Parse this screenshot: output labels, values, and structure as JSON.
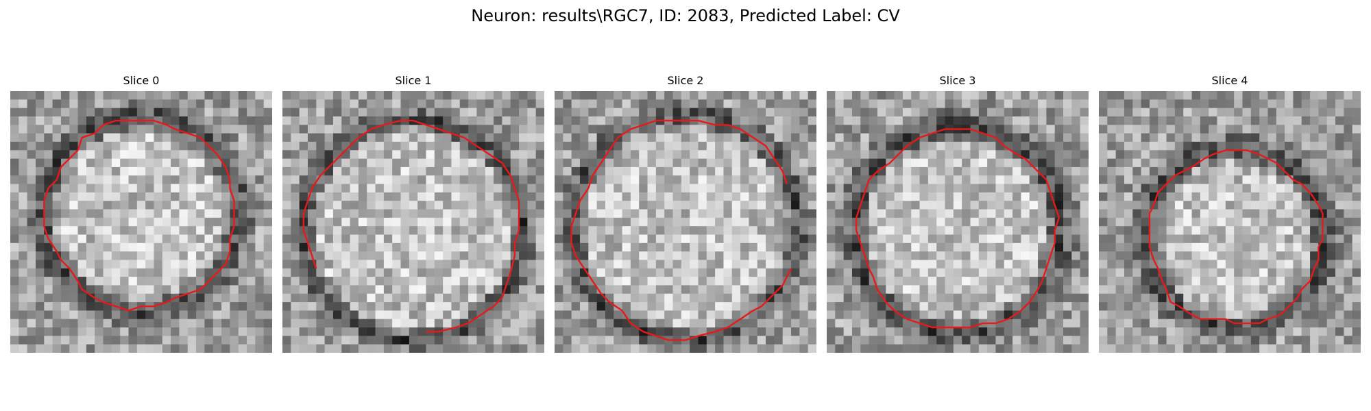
{
  "figure": {
    "title": "Neuron: results\\RGC7, ID: 2083, Predicted Label: CV"
  },
  "slices": [
    {
      "title": "Slice 0",
      "contour_color": "#e8191b"
    },
    {
      "title": "Slice 1",
      "contour_color": "#e8191b"
    },
    {
      "title": "Slice 2",
      "contour_color": "#e8191b"
    },
    {
      "title": "Slice 3",
      "contour_color": "#e8191b"
    },
    {
      "title": "Slice 4",
      "contour_color": "#e8191b"
    }
  ]
}
